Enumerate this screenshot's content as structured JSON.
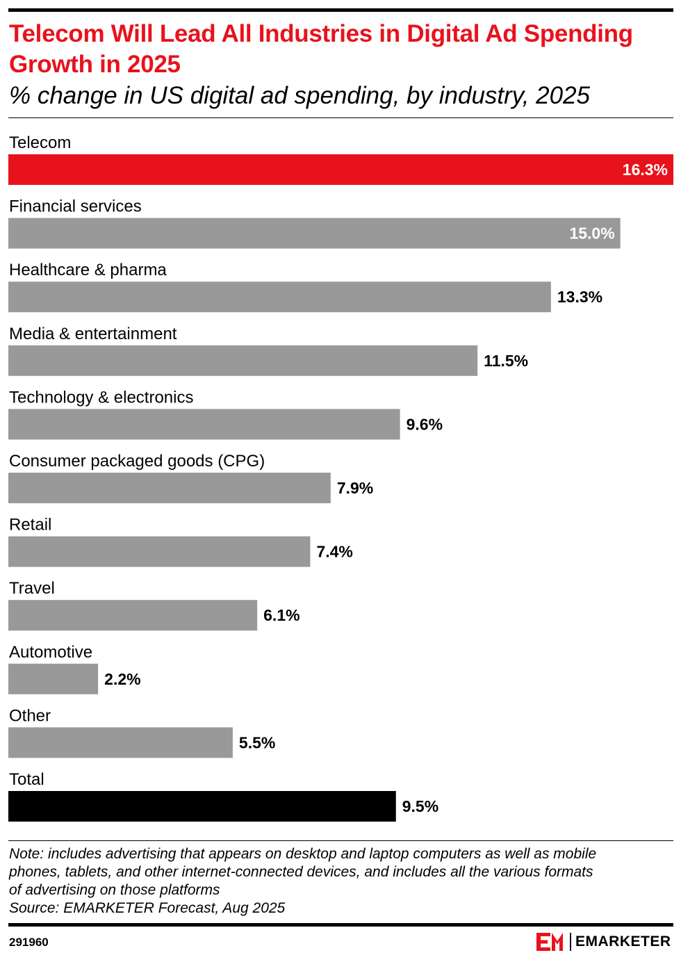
{
  "header": {
    "title": "Telecom Will Lead All Industries in Digital Ad Spending Growth in 2025",
    "subtitle": "% change in US digital ad spending, by industry, 2025"
  },
  "chart_data": {
    "type": "bar",
    "orientation": "horizontal",
    "title": "Telecom Will Lead All Industries in Digital Ad Spending Growth in 2025",
    "subtitle": "% change in US digital ad spending, by industry, 2025",
    "categories": [
      "Telecom",
      "Financial services",
      "Healthcare & pharma",
      "Media & entertainment",
      "Technology & electronics",
      "Consumer packaged goods (CPG)",
      "Retail",
      "Travel",
      "Automotive",
      "Other",
      "Total"
    ],
    "values": [
      16.3,
      15.0,
      13.3,
      11.5,
      9.6,
      7.9,
      7.4,
      6.1,
      2.2,
      5.5,
      9.5
    ],
    "labels": [
      "16.3%",
      "15.0%",
      "13.3%",
      "11.5%",
      "9.6%",
      "7.9%",
      "7.4%",
      "6.1%",
      "2.2%",
      "5.5%",
      "9.5%"
    ],
    "colors": [
      "#e8121c",
      "#999999",
      "#999999",
      "#999999",
      "#999999",
      "#999999",
      "#999999",
      "#999999",
      "#999999",
      "#999999",
      "#000000"
    ],
    "xlim": [
      0,
      16.3
    ],
    "xlabel": "",
    "ylabel": "",
    "grid": false,
    "legend": "none"
  },
  "footer": {
    "note_lines": [
      "Note: includes advertising that appears on desktop and laptop computers as well as mobile",
      "phones, tablets, and other internet-connected devices, and includes all the various formats",
      "of advertising on those platforms"
    ],
    "source": "Source: EMARKETER Forecast, Aug 2025",
    "chart_id": "291960",
    "brand": "EMARKETER"
  },
  "icons": {
    "brand_logo": "emarketer-logo-icon"
  },
  "colors": {
    "accent": "#e8121c",
    "bar": "#999999",
    "total": "#000000"
  }
}
